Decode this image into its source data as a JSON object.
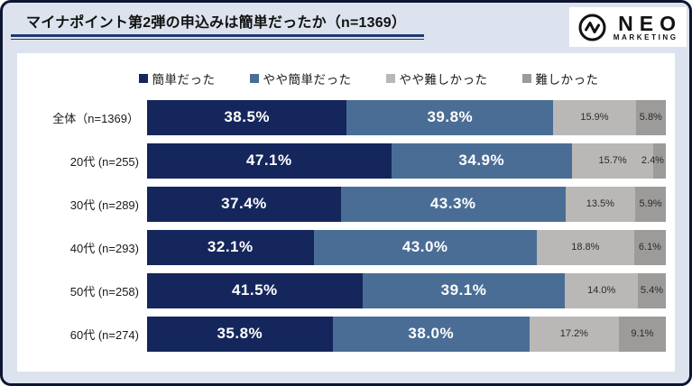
{
  "header": {
    "title": "マイナポイント第2弾の申込みは簡単だったか（n=1369）",
    "logo": {
      "icon": "pulse-circle-icon",
      "brand": "NEO",
      "sub": "MARKETING"
    }
  },
  "colors": {
    "page_background": "#dce3ee",
    "page_border": "#0c1531",
    "title_underline": "#1f3a70",
    "card_background": "#ffffff"
  },
  "chart_data": {
    "type": "bar",
    "orientation": "horizontal-stacked",
    "title": "マイナポイント第2弾の申込みは簡単だったか（n=1369）",
    "xlabel": "",
    "ylabel": "",
    "xlim": [
      0,
      100
    ],
    "value_suffix": "%",
    "grid": false,
    "legend_position": "top",
    "categories": [
      "全体（n=1369）",
      "20代 (n=255)",
      "30代 (n=289)",
      "40代 (n=293)",
      "50代 (n=258)",
      "60代 (n=274)"
    ],
    "series": [
      {
        "name": "簡単だった",
        "color": "#14265c",
        "values": [
          38.5,
          47.1,
          37.4,
          32.1,
          41.5,
          35.8
        ]
      },
      {
        "name": "やや簡単だった",
        "color": "#4a6d96",
        "values": [
          39.8,
          34.9,
          43.3,
          43.0,
          39.1,
          38.0
        ]
      },
      {
        "name": "やや難しかった",
        "color": "#b9b8b6",
        "values": [
          15.9,
          15.7,
          13.5,
          18.8,
          14.0,
          17.2
        ]
      },
      {
        "name": "難しかった",
        "color": "#9c9b99",
        "values": [
          5.8,
          2.4,
          5.9,
          6.1,
          5.4,
          9.1
        ]
      }
    ]
  }
}
